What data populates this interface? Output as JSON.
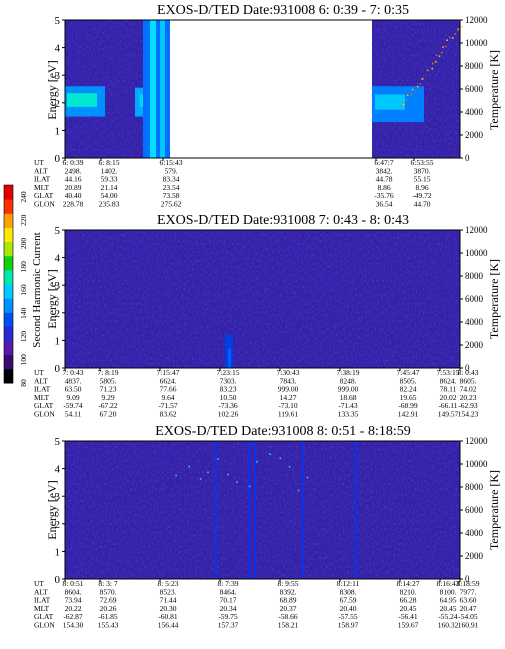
{
  "colors": {
    "background_plot": "#3520a8",
    "colorbar": [
      "#000000",
      "#3a0a6e",
      "#5818a8",
      "#2a28d0",
      "#0050f0",
      "#0090ff",
      "#00c8ff",
      "#00e8b0",
      "#10d010",
      "#a8e800",
      "#ffe800",
      "#ffa000",
      "#ff3000",
      "#e00000"
    ]
  },
  "colorbar": {
    "label": "Second Harmonic Current",
    "ticks": [
      "80",
      "100",
      "120",
      "140",
      "160",
      "180",
      "200",
      "220",
      "240"
    ]
  },
  "ephemeris_row_labels": [
    "UT",
    "ALT",
    "ILAT",
    "MLT",
    "GLAT",
    "GLON"
  ],
  "chart_data": [
    {
      "type": "heatmap",
      "title": "EXOS-D/TED   Date:931008  6: 0:39 - 7: 0:35",
      "ylabel": "Energy [eV]",
      "ylabel_right": "Temperature [K]",
      "ylim": [
        0,
        5
      ],
      "y_ticks": [
        "0",
        "1",
        "2",
        "3",
        "4",
        "5"
      ],
      "ylim_right": [
        0,
        12000
      ],
      "y_ticks_right": [
        "0",
        "2000",
        "4000",
        "6000",
        "8000",
        "10000",
        "12000"
      ],
      "data_gap": true,
      "ephemeris": [
        {
          "UT": "6: 0:39",
          "ALT": "2498.",
          "ILAT": "44.16",
          "MLT": "20.89",
          "GLAT": "40.40",
          "GLON": "228.78"
        },
        {
          "UT": "6: 8:15",
          "ALT": "1402.",
          "ILAT": "59.33",
          "MLT": "21.14",
          "GLAT": "54.00",
          "GLON": "235.83"
        },
        {
          "UT": "6:15:43",
          "ALT": "579.",
          "ILAT": "83.34",
          "MLT": "23.54",
          "GLAT": "73.58",
          "GLON": "275.62"
        },
        {
          "UT": "6:47:7",
          "ALT": "3842.",
          "ILAT": "44.78",
          "MLT": "8.86",
          "GLAT": "-35.76",
          "GLON": "36.54"
        },
        {
          "UT": "6:53:55",
          "ALT": "3870.",
          "ILAT": "55.15",
          "MLT": "8.96",
          "GLAT": "-49.72",
          "GLON": "44.70"
        }
      ]
    },
    {
      "type": "heatmap",
      "title": "EXOS-D/TED   Date:931008  7: 0:43 - 8: 0:43",
      "ylabel": "Energy [eV]",
      "ylabel_right": "Temperature [K]",
      "ylim": [
        0,
        5
      ],
      "y_ticks": [
        "0",
        "1",
        "2",
        "3",
        "4",
        "5"
      ],
      "ylim_right": [
        0,
        12000
      ],
      "y_ticks_right": [
        "0",
        "2000",
        "4000",
        "6000",
        "8000",
        "10000",
        "12000"
      ],
      "data_gap": false,
      "ephemeris": [
        {
          "UT": "7: 0:43",
          "ALT": "4837.",
          "ILAT": "63.50",
          "MLT": "9.09",
          "GLAT": "-59.74",
          "GLON": "54.11"
        },
        {
          "UT": "7: 8:19",
          "ALT": "5805.",
          "ILAT": "71.23",
          "MLT": "9.29",
          "GLAT": "-67.22",
          "GLON": "67.20"
        },
        {
          "UT": "7:15:47",
          "ALT": "6624.",
          "ILAT": "77.66",
          "MLT": "9.64",
          "GLAT": "-71.57",
          "GLON": "83.62"
        },
        {
          "UT": "7:23:15",
          "ALT": "7303.",
          "ILAT": "83.23",
          "MLT": "10.50",
          "GLAT": "-73.36",
          "GLON": "102.26"
        },
        {
          "UT": "7:30:43",
          "ALT": "7843.",
          "ILAT": "999.00",
          "MLT": "14.27",
          "GLAT": "-73.10",
          "GLON": "119.61"
        },
        {
          "UT": "7:38:19",
          "ALT": "8248.",
          "ILAT": "999.00",
          "MLT": "18.68",
          "GLAT": "-71.43",
          "GLON": "133.35"
        },
        {
          "UT": "7:45:47",
          "ALT": "8505.",
          "ILAT": "82.24",
          "MLT": "19.65",
          "GLAT": "-68.99",
          "GLON": "142.91"
        },
        {
          "UT": "7:53:15",
          "ALT": "8624.",
          "ILAT": "78.11",
          "MLT": "20.02",
          "GLAT": "-66.11",
          "GLON": "149.57"
        },
        {
          "UT": "8: 0:43",
          "ALT": "8605.",
          "ILAT": "74.02",
          "MLT": "20.23",
          "GLAT": "-62.93",
          "GLON": "154.23"
        }
      ]
    },
    {
      "type": "heatmap",
      "title": "EXOS-D/TED   Date:931008  8: 0:51 - 8:18:59",
      "ylabel": "Energy [eV]",
      "ylabel_right": "Temperature [K]",
      "ylim": [
        0,
        5
      ],
      "y_ticks": [
        "0",
        "1",
        "2",
        "3",
        "4",
        "5"
      ],
      "ylim_right": [
        0,
        12000
      ],
      "y_ticks_right": [
        "0",
        "2000",
        "4000",
        "6000",
        "8000",
        "10000",
        "12000"
      ],
      "data_gap": false,
      "ephemeris": [
        {
          "UT": "8: 0:51",
          "ALT": "8604.",
          "ILAT": "73.94",
          "MLT": "20.22",
          "GLAT": "-62.87",
          "GLON": "154.30"
        },
        {
          "UT": "8: 3: 7",
          "ALT": "8570.",
          "ILAT": "72.69",
          "MLT": "20.26",
          "GLAT": "-61.85",
          "GLON": "155.43"
        },
        {
          "UT": "8: 5:23",
          "ALT": "8523.",
          "ILAT": "71.44",
          "MLT": "20.30",
          "GLAT": "-60.81",
          "GLON": "156.44"
        },
        {
          "UT": "8: 7:39",
          "ALT": "8464.",
          "ILAT": "70.17",
          "MLT": "20.34",
          "GLAT": "-59.75",
          "GLON": "157.37"
        },
        {
          "UT": "8: 9:55",
          "ALT": "8392.",
          "ILAT": "68.89",
          "MLT": "20.37",
          "GLAT": "-58.66",
          "GLON": "158.21"
        },
        {
          "UT": "8:12:11",
          "ALT": "8308.",
          "ILAT": "67.59",
          "MLT": "20.40",
          "GLAT": "-57.55",
          "GLON": "158.97"
        },
        {
          "UT": "8:14:27",
          "ALT": "8210.",
          "ILAT": "66.28",
          "MLT": "20.45",
          "GLAT": "-56.41",
          "GLON": "159.67"
        },
        {
          "UT": "8:16:43",
          "ALT": "8100.",
          "ILAT": "64.95",
          "MLT": "20.45",
          "GLAT": "-55.24",
          "GLON": "160.32"
        },
        {
          "UT": "8:18:59",
          "ALT": "7977.",
          "ILAT": "63.60",
          "MLT": "20.47",
          "GLAT": "-54.05",
          "GLON": "160.91"
        }
      ]
    }
  ]
}
